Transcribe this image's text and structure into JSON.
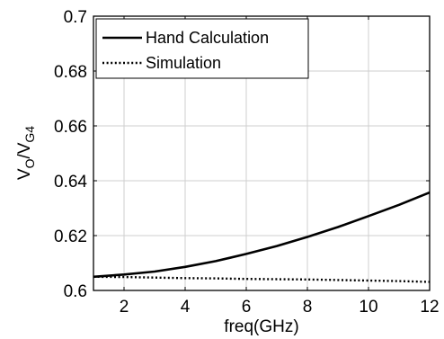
{
  "chart_data": {
    "type": "line",
    "xlabel": "freq(GHz)",
    "ylabel_main": "V",
    "ylabel_sub1": "O",
    "ylabel_slash": "/V",
    "ylabel_sub2": "G4",
    "xlim": [
      1,
      12
    ],
    "ylim": [
      0.6,
      0.7
    ],
    "xticks": [
      {
        "value": 2,
        "label": "2"
      },
      {
        "value": 4,
        "label": "4"
      },
      {
        "value": 6,
        "label": "6"
      },
      {
        "value": 8,
        "label": "8"
      },
      {
        "value": 10,
        "label": "10"
      },
      {
        "value": 12,
        "label": "12"
      }
    ],
    "yticks": [
      {
        "value": 0.6,
        "label": "0.6"
      },
      {
        "value": 0.62,
        "label": "0.62"
      },
      {
        "value": 0.64,
        "label": "0.64"
      },
      {
        "value": 0.66,
        "label": "0.66"
      },
      {
        "value": 0.68,
        "label": "0.68"
      },
      {
        "value": 0.7,
        "label": "0.7"
      }
    ],
    "grid": true,
    "legend_position": "top-left",
    "series": [
      {
        "name": "Hand Calculation",
        "style": "solid",
        "x": [
          1,
          2,
          3,
          4,
          5,
          6,
          7,
          8,
          9,
          10,
          11,
          12
        ],
        "y": [
          0.605,
          0.6058,
          0.6069,
          0.6086,
          0.6107,
          0.6133,
          0.6162,
          0.6195,
          0.6231,
          0.6271,
          0.6312,
          0.6357
        ]
      },
      {
        "name": "Simulation",
        "style": "dotted",
        "x": [
          1,
          2,
          3,
          4,
          5,
          6,
          7,
          8,
          9,
          10,
          11,
          12
        ],
        "y": [
          0.605,
          0.6049,
          0.6047,
          0.6045,
          0.6044,
          0.6042,
          0.6041,
          0.604,
          0.6038,
          0.6036,
          0.6034,
          0.6031
        ]
      }
    ]
  }
}
